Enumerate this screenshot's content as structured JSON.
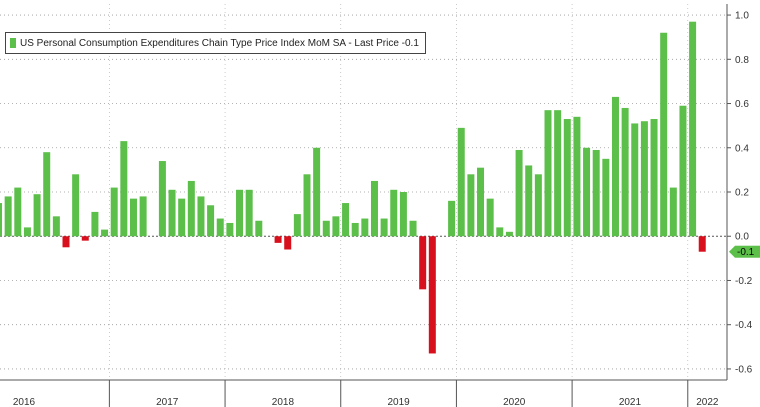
{
  "chart_data": {
    "type": "bar",
    "legend": {
      "label": "US Personal Consumption Expenditures Chain Type Price Index MoM SA - Last Price -0.1",
      "placement": "top-left"
    },
    "last_value_label": "-0.1",
    "ylim": [
      -0.65,
      1.05
    ],
    "yticks": [
      -0.6,
      -0.4,
      -0.2,
      0.0,
      0.2,
      0.4,
      0.6,
      0.8,
      1.0
    ],
    "ytick_labels": [
      "-0.6",
      "-0.4",
      "-0.2",
      "0.0",
      "0.2",
      "0.4",
      "0.6",
      "0.8",
      "1.0"
    ],
    "grid": true,
    "year_labels": [
      "2016",
      "2017",
      "2018",
      "2019",
      "2020",
      "2021",
      "2022"
    ],
    "x_start": "2016-01",
    "values": [
      0.15,
      0.18,
      0.22,
      0.04,
      0.19,
      0.38,
      0.09,
      -0.05,
      0.28,
      -0.02,
      0.11,
      0.03,
      0.22,
      0.43,
      0.17,
      0.18,
      0.0,
      0.34,
      0.21,
      0.17,
      0.25,
      0.18,
      0.14,
      0.08,
      0.06,
      0.21,
      0.21,
      0.07,
      0.0,
      -0.03,
      -0.06,
      0.1,
      0.28,
      0.4,
      0.07,
      0.09,
      0.15,
      0.06,
      0.08,
      0.25,
      0.08,
      0.21,
      0.2,
      0.07,
      -0.24,
      -0.53,
      0.0,
      0.16,
      0.49,
      0.28,
      0.31,
      0.17,
      0.04,
      0.02,
      0.39,
      0.32,
      0.28,
      0.57,
      0.57,
      0.53,
      0.54,
      0.4,
      0.39,
      0.35,
      0.63,
      0.58,
      0.51,
      0.52,
      0.53,
      0.92,
      0.22,
      0.59,
      0.97,
      -0.07
    ],
    "colors": {
      "positive": "#5cbf4a",
      "negative": "#d8101e",
      "label_bg": "#5cbf4a"
    }
  }
}
